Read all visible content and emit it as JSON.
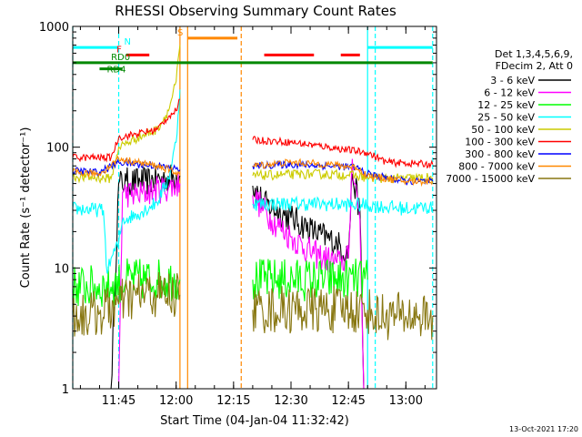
{
  "chart_data": {
    "type": "line",
    "title": "RHESSI Observing Summary Count Rates",
    "xlabel": "Start Time (04-Jan-04 11:32:42)",
    "ylabel": "Count Rate (s⁻¹ detector⁻¹)",
    "y_scale": "log",
    "xlim": [
      "11:33",
      "13:08"
    ],
    "ylim": [
      1,
      1000
    ],
    "x_ticks": [
      "11:45",
      "12:00",
      "12:15",
      "12:30",
      "12:45",
      "13:00"
    ],
    "y_ticks": [
      "1",
      "10",
      "100",
      "1000"
    ],
    "legend_header": [
      "Det 1,3,4,5,6,9,",
      "FDecim 2, Att 0"
    ],
    "series": [
      {
        "name": "3 - 6 keV",
        "color": "#000000",
        "noise": 0.12,
        "points": [
          [
            "11:43",
            1
          ],
          [
            "11:45",
            50
          ],
          [
            "11:47",
            52
          ],
          [
            "11:52",
            52
          ],
          [
            "11:57",
            55
          ],
          [
            "12:01",
            58
          ],
          [
            "12:01.5",
            null
          ],
          [
            "12:20",
            null
          ],
          [
            "12:20",
            48
          ],
          [
            "12:23",
            34
          ],
          [
            "12:30",
            26
          ],
          [
            "12:36",
            20
          ],
          [
            "12:42",
            16
          ],
          [
            "12:45",
            13
          ],
          [
            "12:46",
            60
          ],
          [
            "12:48",
            30
          ],
          [
            "12:49",
            1
          ],
          [
            "12:50",
            null
          ]
        ]
      },
      {
        "name": "6 - 12 keV",
        "color": "#ff00ff",
        "noise": 0.12,
        "points": [
          [
            "11:45",
            1
          ],
          [
            "11:46",
            42
          ],
          [
            "11:50",
            40
          ],
          [
            "11:54",
            44
          ],
          [
            "11:58",
            46
          ],
          [
            "12:01",
            50
          ],
          [
            "12:01.5",
            null
          ],
          [
            "12:20",
            null
          ],
          [
            "12:20",
            40
          ],
          [
            "12:25",
            25
          ],
          [
            "12:30",
            18
          ],
          [
            "12:36",
            13
          ],
          [
            "12:42",
            11
          ],
          [
            "12:45",
            12
          ],
          [
            "12:46",
            80
          ],
          [
            "12:48",
            25
          ],
          [
            "12:49",
            1
          ],
          [
            "12:50",
            null
          ]
        ]
      },
      {
        "name": "12 - 25 keV",
        "color": "#00ff00",
        "noise": 0.18,
        "points": [
          [
            "11:33",
            7
          ],
          [
            "11:43",
            7
          ],
          [
            "11:47",
            8
          ],
          [
            "11:55",
            8
          ],
          [
            "12:00",
            8
          ],
          [
            "12:01",
            8
          ],
          [
            "12:01.5",
            null
          ],
          [
            "12:20",
            null
          ],
          [
            "12:20",
            8
          ],
          [
            "12:35",
            8
          ],
          [
            "12:45",
            8
          ],
          [
            "12:50",
            8
          ],
          [
            "12:52",
            null
          ]
        ]
      },
      {
        "name": "25 - 50 keV",
        "color": "#00ffff",
        "noise": 0.06,
        "points": [
          [
            "11:33",
            31
          ],
          [
            "11:41",
            30
          ],
          [
            "11:42",
            9
          ],
          [
            "11:43",
            12
          ],
          [
            "11:45",
            16
          ],
          [
            "11:46",
            25
          ],
          [
            "11:50",
            28
          ],
          [
            "11:55",
            35
          ],
          [
            "11:58",
            55
          ],
          [
            "12:00",
            110
          ],
          [
            "12:01",
            300
          ],
          [
            "12:01.5",
            null
          ],
          [
            "12:20",
            null
          ],
          [
            "12:20",
            34
          ],
          [
            "12:35",
            34
          ],
          [
            "12:50",
            33
          ],
          [
            "13:00",
            31
          ],
          [
            "13:07",
            32
          ]
        ]
      },
      {
        "name": "50 - 100 keV",
        "color": "#cccc00",
        "noise": 0.04,
        "points": [
          [
            "11:33",
            57
          ],
          [
            "11:43",
            55
          ],
          [
            "11:45",
            100
          ],
          [
            "11:50",
            120
          ],
          [
            "11:55",
            140
          ],
          [
            "11:58",
            200
          ],
          [
            "12:00",
            350
          ],
          [
            "12:01",
            700
          ],
          [
            "12:01.5",
            null
          ],
          [
            "12:20",
            null
          ],
          [
            "12:20",
            58
          ],
          [
            "12:35",
            60
          ],
          [
            "12:45",
            59
          ],
          [
            "12:50",
            56
          ],
          [
            "12:55",
            55
          ],
          [
            "13:07",
            56
          ]
        ]
      },
      {
        "name": "100 - 300 keV",
        "color": "#ff0000",
        "noise": 0.03,
        "points": [
          [
            "11:33",
            82
          ],
          [
            "11:43",
            82
          ],
          [
            "11:45",
            120
          ],
          [
            "11:55",
            140
          ],
          [
            "11:58",
            180
          ],
          [
            "12:00",
            200
          ],
          [
            "12:01",
            250
          ],
          [
            "12:01.5",
            null
          ],
          [
            "12:20",
            null
          ],
          [
            "12:20",
            115
          ],
          [
            "12:30",
            110
          ],
          [
            "12:40",
            100
          ],
          [
            "12:50",
            90
          ],
          [
            "12:55",
            75
          ],
          [
            "13:07",
            72
          ]
        ]
      },
      {
        "name": "300 - 800 keV",
        "color": "#0000ff",
        "noise": 0.03,
        "points": [
          [
            "11:33",
            64
          ],
          [
            "11:40",
            62
          ],
          [
            "11:45",
            75
          ],
          [
            "11:50",
            72
          ],
          [
            "11:55",
            70
          ],
          [
            "12:00",
            66
          ],
          [
            "12:01",
            65
          ],
          [
            "12:01.5",
            null
          ],
          [
            "12:20",
            null
          ],
          [
            "12:20",
            70
          ],
          [
            "12:30",
            72
          ],
          [
            "12:40",
            70
          ],
          [
            "12:47",
            68
          ],
          [
            "12:50",
            60
          ],
          [
            "13:00",
            52
          ],
          [
            "13:07",
            52
          ]
        ]
      },
      {
        "name": "800 - 7000 keV",
        "color": "#ff8800",
        "noise": 0.03,
        "points": [
          [
            "11:33",
            62
          ],
          [
            "11:40",
            60
          ],
          [
            "11:45",
            80
          ],
          [
            "11:50",
            75
          ],
          [
            "11:55",
            70
          ],
          [
            "12:00",
            62
          ],
          [
            "12:01",
            60
          ],
          [
            "12:01.5",
            null
          ],
          [
            "12:20",
            null
          ],
          [
            "12:20",
            70
          ],
          [
            "12:30",
            75
          ],
          [
            "12:40",
            72
          ],
          [
            "12:47",
            68
          ],
          [
            "12:50",
            58
          ],
          [
            "13:00",
            52
          ],
          [
            "13:07",
            52
          ]
        ]
      },
      {
        "name": "7000 - 15000 keV",
        "color": "#887711",
        "noise": 0.2,
        "points": [
          [
            "11:33",
            4
          ],
          [
            "11:40",
            4.2
          ],
          [
            "11:45",
            5
          ],
          [
            "11:50",
            6
          ],
          [
            "11:55",
            6
          ],
          [
            "12:00",
            6
          ],
          [
            "12:01",
            6
          ],
          [
            "12:01.5",
            null
          ],
          [
            "12:20",
            null
          ],
          [
            "12:20",
            4.5
          ],
          [
            "12:35",
            4.5
          ],
          [
            "12:50",
            4.5
          ],
          [
            "12:52",
            4
          ],
          [
            "13:00",
            4
          ],
          [
            "13:07",
            4
          ]
        ]
      }
    ],
    "annotations": {
      "bars": [
        {
          "label": "N",
          "color": "#00ffff",
          "level": 670,
          "segments": [
            [
              "11:33",
              "11:45"
            ],
            [
              "12:50",
              "13:07"
            ]
          ]
        },
        {
          "label": "F",
          "color": "#ff0000",
          "level": 580,
          "segments": [
            [
              "11:47",
              "11:53"
            ],
            [
              "12:23",
              "12:36"
            ],
            [
              "12:43",
              "12:48"
            ]
          ]
        },
        {
          "label": "S",
          "color": "#ff8800",
          "level": 800,
          "segments": [
            [
              "12:03",
              "12:16"
            ]
          ]
        },
        {
          "label": "RD0",
          "color": "#008800",
          "level": 500,
          "segments": [
            [
              "11:33",
              "13:07"
            ]
          ]
        },
        {
          "label": "RD4",
          "color": "#008800",
          "level": 445,
          "segments": [
            [
              "11:40",
              "11:46"
            ]
          ]
        }
      ],
      "vlines": [
        {
          "x": "11:33",
          "color": "#00ffff",
          "style": "dashed"
        },
        {
          "x": "11:45",
          "color": "#00ffff",
          "style": "dashed"
        },
        {
          "x": "12:01",
          "color": "#ff8800",
          "style": "solid"
        },
        {
          "x": "12:03",
          "color": "#ff8800",
          "style": "solid"
        },
        {
          "x": "12:17",
          "color": "#ff8800",
          "style": "dashed"
        },
        {
          "x": "12:50",
          "color": "#00ffff",
          "style": "solid"
        },
        {
          "x": "12:52",
          "color": "#00ffff",
          "style": "dashed"
        },
        {
          "x": "13:07",
          "color": "#00ffff",
          "style": "dashed"
        }
      ]
    },
    "grid": false,
    "legend_placement": "right"
  },
  "timestamp": "13-Oct-2021 17:20"
}
